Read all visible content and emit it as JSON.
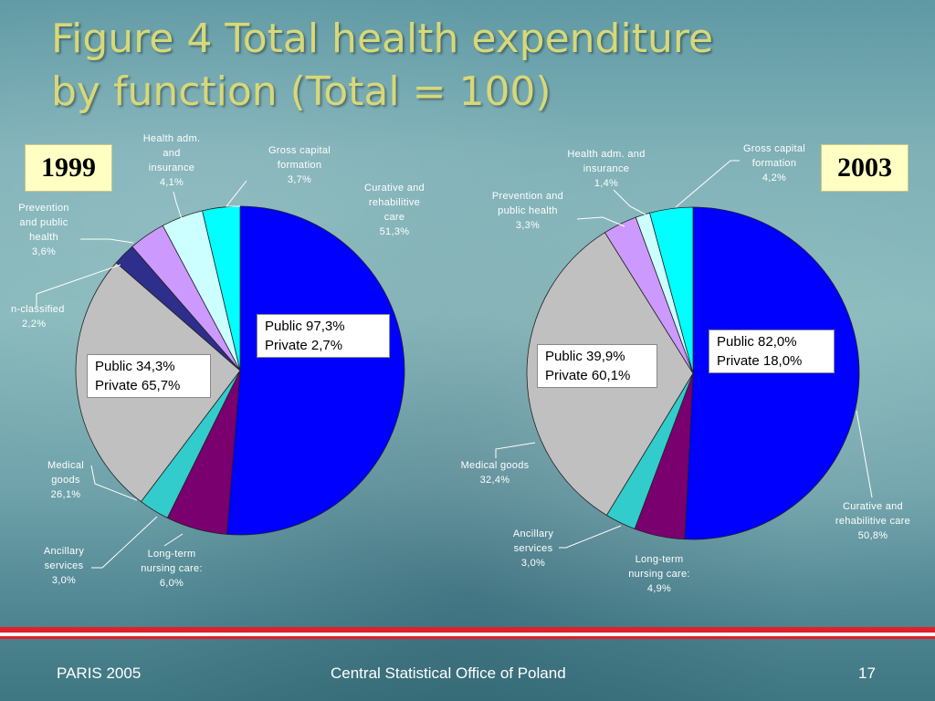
{
  "slide": {
    "title_line1": "Figure 4 Total health expenditure",
    "title_line2": "by function (Total = 100)",
    "footer_left": "PARIS 2005",
    "footer_center": "Central Statistical Office of Poland",
    "footer_right": "17"
  },
  "colors": {
    "curative": "#0000ff",
    "long_term": "#7a0070",
    "ancillary": "#33cccc",
    "medical_goods": "#c0c0c0",
    "unclassified": "#2e2e8c",
    "prevention": "#cc99ff",
    "health_adm": "#ccffff",
    "gross_capital": "#00ffff",
    "title": "#d7d878",
    "year_box": "#ffffc4",
    "rule": "#e1202a"
  },
  "chart_data": [
    {
      "type": "pie",
      "year": "1999",
      "slices": [
        {
          "name": "Curative and rehabilitive care",
          "value": 51.3,
          "label_lines": [
            "Curative and",
            "rehabilitive",
            "care",
            "51,3%"
          ]
        },
        {
          "name": "Long-term nursing care",
          "value": 6.0,
          "label_lines": [
            "Long-term",
            "nursing care:",
            "6,0%"
          ]
        },
        {
          "name": "Ancillary services",
          "value": 3.0,
          "label_lines": [
            "Ancillary",
            "services",
            "3,0%"
          ]
        },
        {
          "name": "Medical goods",
          "value": 26.1,
          "label_lines": [
            "Medical",
            "goods",
            "26,1%"
          ]
        },
        {
          "name": "Non-classified",
          "value": 2.2,
          "label_lines": [
            "n-classified",
            "2,2%"
          ]
        },
        {
          "name": "Prevention and public health",
          "value": 3.6,
          "label_lines": [
            "Prevention",
            "and public",
            "health",
            "3,6%"
          ]
        },
        {
          "name": "Health adm. and insurance",
          "value": 4.1,
          "label_lines": [
            "Health adm.",
            "and",
            "insurance",
            "4,1%"
          ]
        },
        {
          "name": "Gross capital formation",
          "value": 3.7,
          "label_lines": [
            "Gross capital",
            "formation",
            "3,7%"
          ]
        }
      ],
      "boxes": [
        {
          "public": "Public 97,3%",
          "private": "Private 2,7%"
        },
        {
          "public": "Public 34,3%",
          "private": "Private 65,7%"
        }
      ]
    },
    {
      "type": "pie",
      "year": "2003",
      "slices": [
        {
          "name": "Curative and rehabilitive care",
          "value": 50.8,
          "label_lines": [
            "Curative and",
            "rehabilitive care",
            "50,8%"
          ]
        },
        {
          "name": "Long-term nursing care",
          "value": 4.9,
          "label_lines": [
            "Long-term",
            "nursing care:",
            "4,9%"
          ]
        },
        {
          "name": "Ancillary services",
          "value": 3.0,
          "label_lines": [
            "Ancillary",
            "services",
            "3,0%"
          ]
        },
        {
          "name": "Medical goods",
          "value": 32.4,
          "label_lines": [
            "Medical goods",
            "32,4%"
          ]
        },
        {
          "name": "Prevention and public health",
          "value": 3.3,
          "label_lines": [
            "Prevention and",
            "public health",
            "3,3%"
          ]
        },
        {
          "name": "Health adm. and insurance",
          "value": 1.4,
          "label_lines": [
            "Health adm. and",
            "insurance",
            "1,4%"
          ]
        },
        {
          "name": "Gross capital formation",
          "value": 4.2,
          "label_lines": [
            "Gross capital",
            "formation",
            "4,2%"
          ]
        }
      ],
      "boxes": [
        {
          "public": "Public 82,0%",
          "private": "Private 18,0%"
        },
        {
          "public": "Public 39,9%",
          "private": "Private 60,1%"
        }
      ]
    }
  ]
}
